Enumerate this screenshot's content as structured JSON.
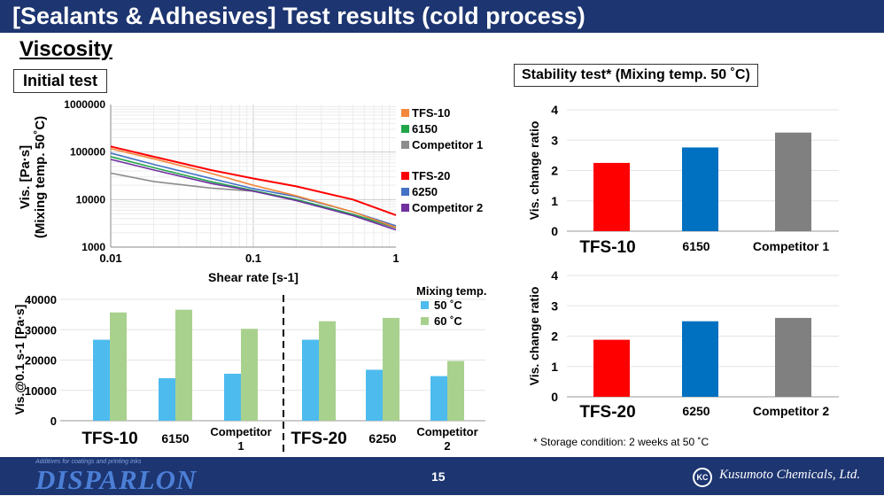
{
  "header": {
    "title": "[Sealants & Adhesives] Test results (cold process)"
  },
  "section": "Viscosity",
  "initial_label": "Initial test",
  "stability_label": "Stability test* (Mixing temp. 50 ˚C)",
  "footnote": "*   Storage condition: 2 weeks at 50 ˚C",
  "footer": {
    "tagline": "Additives for coatings and printing inks",
    "brand": "DISPARLON",
    "page": "15",
    "company": "Kusumoto Chemicals, Ltd.",
    "company_icon": "KC"
  },
  "chart_data": [
    {
      "type": "line",
      "id": "flow",
      "xlabel": "Shear rate [s-1]",
      "ylabel": "Vis. [Pa·s] (Mixing temp. 50˚C)",
      "xscale": "log",
      "yscale": "log",
      "xlim": [
        0.01,
        1
      ],
      "ylim": [
        1000,
        1000000
      ],
      "xticks": [
        "0.01",
        "0.1",
        "1"
      ],
      "yticks": [
        "1000",
        "10000",
        "100000",
        "1000000"
      ],
      "legend": "right",
      "grid": true,
      "x": [
        0.01,
        0.02,
        0.05,
        0.1,
        0.2,
        0.5,
        1
      ],
      "series": [
        {
          "name": "TFS-10",
          "color": "#f4873b",
          "values": [
            118000,
            72000,
            36000,
            20000,
            12000,
            5500,
            2600
          ]
        },
        {
          "name": "6150",
          "color": "#21a64a",
          "values": [
            80000,
            47000,
            24000,
            15500,
            10000,
            4900,
            2600
          ]
        },
        {
          "name": "Competitor 1",
          "color": "#8c8c8c",
          "values": [
            36000,
            24000,
            17500,
            15000,
            10000,
            4800,
            2500
          ]
        },
        {
          "name": "TFS-20",
          "color": "#ff0000",
          "values": [
            131000,
            80000,
            42000,
            27800,
            19000,
            10000,
            4700
          ]
        },
        {
          "name": "6250",
          "color": "#4472c4",
          "values": [
            95000,
            55000,
            28000,
            17000,
            11500,
            5500,
            2800
          ]
        },
        {
          "name": "Competitor 2",
          "color": "#7030a0",
          "values": [
            70000,
            42000,
            22000,
            15000,
            9500,
            4600,
            2300
          ]
        }
      ]
    },
    {
      "type": "bar",
      "id": "vis01",
      "ylabel": "Vis.@0.1 s-1 [Pa·s]",
      "ylim": [
        0,
        40000
      ],
      "yticks": [
        "0",
        "10000",
        "20000",
        "30000",
        "40000"
      ],
      "legend_title": "Mixing temp.",
      "legend": "top-right",
      "categories": [
        "TFS-10",
        "6150",
        "Competitor 1",
        "TFS-20",
        "6250",
        "Competitor 2"
      ],
      "series": [
        {
          "name": "50 ˚C",
          "color": "#4dbbee",
          "values": [
            26700,
            14000,
            15500,
            26700,
            16800,
            14700
          ]
        },
        {
          "name": "60 ˚C",
          "color": "#a9d18e",
          "values": [
            35700,
            36600,
            30300,
            32800,
            33900,
            19700
          ]
        }
      ]
    },
    {
      "type": "bar",
      "id": "stab1",
      "ylabel": "Vis. change ratio",
      "ylim": [
        0,
        4
      ],
      "yticks": [
        "0",
        "1",
        "2",
        "3",
        "4"
      ],
      "categories": [
        "TFS-10",
        "6150",
        "Competitor 1"
      ],
      "colors": [
        "#ff0000",
        "#0070c0",
        "#808080"
      ],
      "values": [
        2.25,
        2.76,
        3.25
      ]
    },
    {
      "type": "bar",
      "id": "stab2",
      "ylabel": "Vis. change ratio",
      "ylim": [
        0,
        4
      ],
      "yticks": [
        "0",
        "1",
        "2",
        "3",
        "4"
      ],
      "categories": [
        "TFS-20",
        "6250",
        "Competitor 2"
      ],
      "colors": [
        "#ff0000",
        "#0070c0",
        "#808080"
      ],
      "values": [
        1.88,
        2.49,
        2.6
      ]
    }
  ]
}
